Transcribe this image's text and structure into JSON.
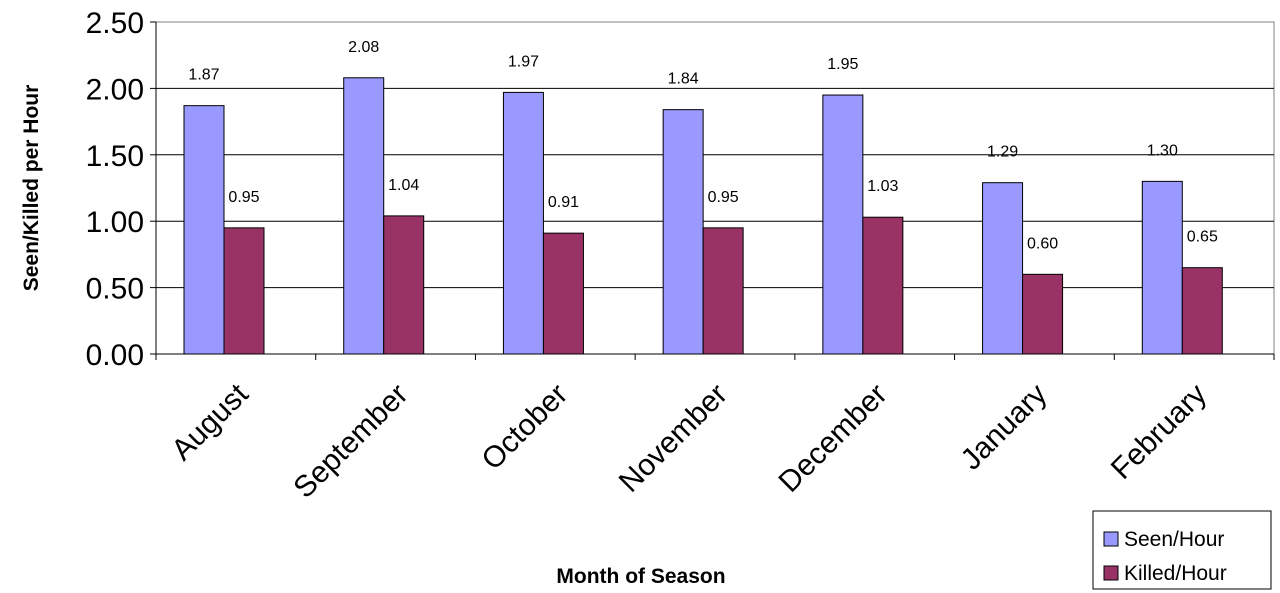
{
  "chart_data": {
    "type": "bar",
    "categories": [
      "August",
      "September",
      "October",
      "November",
      "December",
      "January",
      "February"
    ],
    "series": [
      {
        "name": "Seen/Hour",
        "color": "#9999ff",
        "values": [
          1.87,
          2.08,
          1.97,
          1.84,
          1.95,
          1.29,
          1.3
        ],
        "labels": [
          "1.87",
          "2.08",
          "1.97",
          "1.84",
          "1.95",
          "1.29",
          "1.30"
        ]
      },
      {
        "name": "Killed/Hour",
        "color": "#993366",
        "values": [
          0.95,
          1.04,
          0.91,
          0.95,
          1.03,
          0.6,
          0.65
        ],
        "labels": [
          "0.95",
          "1.04",
          "0.91",
          "0.95",
          "1.03",
          "0.60",
          "0.65"
        ]
      }
    ],
    "title": "",
    "xlabel": "Month of Season",
    "ylabel": "Seen/Killed per Hour",
    "ylim": [
      0,
      2.5
    ],
    "yticks": [
      "0.00",
      "0.50",
      "1.00",
      "1.50",
      "2.00",
      "2.50"
    ],
    "grid": true,
    "legend_position": "bottom-right"
  }
}
